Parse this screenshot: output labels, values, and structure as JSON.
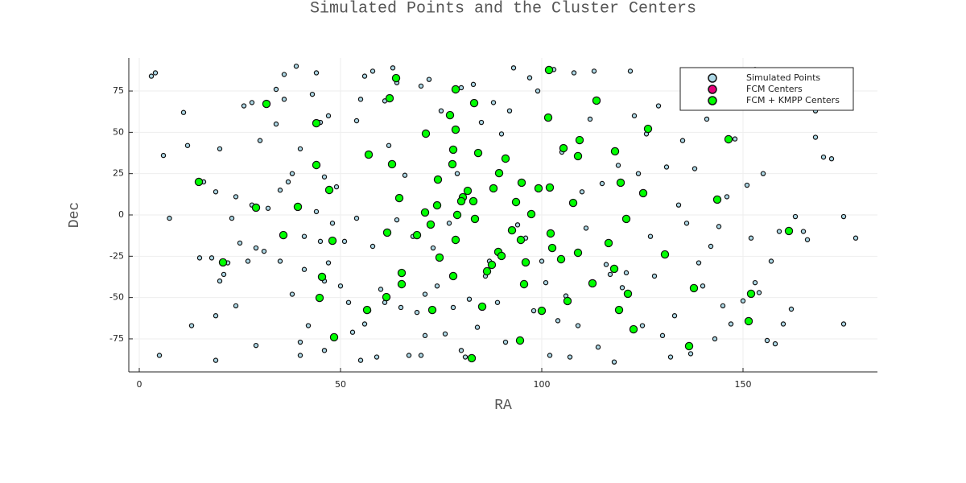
{
  "chart_data": {
    "type": "scatter",
    "title": "Simulated Points and the Cluster Centers",
    "xlabel": "RA",
    "ylabel": "Dec",
    "xlim": [
      -2.6,
      183.4
    ],
    "ylim": [
      -95,
      95
    ],
    "xticks": [
      0,
      50,
      100,
      150
    ],
    "yticks": [
      -75,
      -50,
      -25,
      0,
      25,
      50,
      75
    ],
    "grid": true,
    "legend_position": "top right",
    "series": [
      {
        "name": "Simulated Points",
        "color": "#add8e6",
        "x": [
          3,
          4,
          6,
          7.5,
          5,
          11,
          12,
          13,
          15,
          16,
          18,
          19,
          19,
          19,
          20,
          20,
          21,
          22,
          23,
          24,
          24,
          25,
          26,
          27,
          28,
          28,
          29,
          29,
          30,
          31,
          32,
          34,
          34,
          35,
          35,
          36,
          36,
          37,
          38,
          38,
          39,
          40,
          40,
          40,
          41,
          41,
          42,
          43,
          44,
          44,
          45,
          45,
          46,
          46,
          46,
          47,
          47,
          48,
          49,
          50,
          51,
          52,
          53,
          54,
          54,
          55,
          55,
          56,
          56,
          57,
          58,
          58,
          59,
          60,
          61,
          61,
          62,
          63,
          64,
          64,
          65,
          66,
          67,
          68,
          69,
          70,
          70,
          71,
          71,
          72,
          73,
          74,
          75,
          76,
          77,
          78,
          79,
          80,
          80,
          81,
          82,
          83,
          84,
          85,
          86,
          87,
          88,
          89,
          90,
          91,
          92,
          93,
          94,
          96,
          97,
          98,
          99,
          100,
          101,
          102,
          103,
          104,
          105,
          106,
          107,
          108,
          109,
          110,
          111,
          112,
          113,
          114,
          115,
          116,
          117,
          118,
          119,
          120,
          121,
          122,
          123,
          124,
          125,
          126,
          127,
          128,
          129,
          130,
          131,
          132,
          133,
          134,
          135,
          136,
          137,
          138,
          139,
          140,
          141,
          142,
          143,
          144,
          145,
          146,
          147,
          148,
          150,
          151,
          152,
          153,
          154,
          155,
          156,
          157,
          158,
          159,
          160,
          162,
          163,
          165,
          166,
          168,
          170,
          172,
          175,
          175,
          178,
          153,
          168
        ],
        "y": [
          84,
          86,
          36,
          -2,
          -85,
          62,
          42,
          -67,
          -26,
          20,
          -26,
          14,
          -61,
          -88,
          40,
          -40,
          -36,
          -29,
          -2,
          11,
          -55,
          -17,
          66,
          -28,
          68,
          6,
          -79,
          -20,
          45,
          -22,
          4,
          76,
          55,
          -28,
          15,
          70,
          85,
          20,
          25,
          -48,
          90,
          -77,
          -85,
          40,
          -13,
          -33,
          -67,
          73,
          86,
          2,
          56,
          -16,
          23,
          -40,
          -82,
          -29,
          60,
          -5,
          17,
          -43,
          -16,
          -53,
          -71,
          -2,
          57,
          70,
          -88,
          -66,
          84,
          -58,
          87,
          -19,
          -86,
          -45,
          69,
          -53,
          42,
          89,
          -3,
          80,
          -56,
          24,
          -85,
          -13,
          -59,
          -85,
          78,
          -73,
          -48,
          82,
          -20,
          -43,
          63,
          -72,
          -5,
          -56,
          25,
          77,
          -82,
          -86,
          -51,
          79,
          -68,
          56,
          -37,
          -28,
          68,
          -53,
          49,
          -77,
          63,
          89,
          -6,
          -14,
          83,
          -58,
          75,
          -28,
          -41,
          -85,
          88,
          -64,
          38,
          -49,
          -86,
          86,
          -67,
          14,
          -8,
          58,
          87,
          -80,
          19,
          -30,
          -36,
          -89,
          30,
          -44,
          -35,
          87,
          60,
          25,
          -67,
          49,
          -13,
          -37,
          66,
          -73,
          29,
          -86,
          -61,
          6,
          45,
          -5,
          -84,
          28,
          -29,
          -43,
          58,
          -19,
          -75,
          -7,
          -55,
          11,
          -66,
          46,
          -52,
          18,
          -14,
          -41,
          -47,
          25,
          -76,
          -28,
          -78,
          -10,
          -66,
          -57,
          -1,
          -10,
          -15,
          47,
          35,
          34,
          -66,
          -1,
          -14,
          88,
          63
        ]
      },
      {
        "name": "FCM Centers",
        "color": "#e6007a",
        "x": [],
        "y": []
      },
      {
        "name": "FCM + KMPP Centers",
        "color": "#00ff00",
        "x": [
          31.6,
          44,
          44,
          14.8,
          47.2,
          29,
          39.4,
          20.8,
          35.8,
          48,
          45.4,
          44.8,
          48.4,
          56.6,
          57,
          62.8,
          62.2,
          63.8,
          71.2,
          78.6,
          83.2,
          101.8,
          113.6,
          77.2,
          78.6,
          84.2,
          91,
          78,
          77.8,
          74.2,
          64.6,
          61.6,
          69,
          74.6,
          65.2,
          61.4,
          72.8,
          78,
          78.6,
          79,
          71,
          72.4,
          74,
          80.4,
          81.6,
          80,
          83,
          88,
          89.4,
          95,
          93.6,
          83.4,
          97.4,
          92.6,
          94.8,
          89.2,
          90,
          87.6,
          86.4,
          96,
          95.6,
          85.2,
          65.2,
          82.6,
          94.6,
          100,
          102.2,
          102.6,
          104.8,
          109,
          106.4,
          112.6,
          118,
          116.6,
          119.2,
          122.8,
          121,
          125.2,
          119.6,
          118.2,
          109,
          109.4,
          105.4,
          101.6,
          99.2,
          102,
          107.8,
          126.4,
          130.6,
          121.4,
          137.8,
          136.6,
          143.6,
          146.4,
          152,
          151.4,
          161.4
        ],
        "y": [
          67.2,
          55.5,
          30.2,
          20,
          15.1,
          4.4,
          4.9,
          -28.7,
          -12.2,
          -15.6,
          -37.5,
          -50.2,
          -74,
          -57.5,
          36.5,
          30.7,
          70.6,
          82.8,
          49.2,
          76,
          67.7,
          87.7,
          69.2,
          60.4,
          51.6,
          37.5,
          34.1,
          39.5,
          30.7,
          21.4,
          10.2,
          -10.7,
          -12.2,
          -25.8,
          -35.1,
          -49.7,
          -57.5,
          -37,
          -15.1,
          0,
          1.5,
          -5.8,
          5.8,
          10.7,
          14.6,
          8.3,
          8.3,
          16.1,
          25.3,
          19.5,
          7.8,
          -2.4,
          0.5,
          -9.3,
          -15.1,
          -22.4,
          -24.8,
          -30.2,
          -34.1,
          -28.7,
          -41.9,
          -55.5,
          -41.9,
          -86.7,
          -76,
          -58,
          -11.2,
          -20,
          -26.8,
          -22.9,
          -52.1,
          -41.4,
          -32.6,
          -17,
          -57.5,
          -69.2,
          -2.4,
          13.2,
          19.5,
          38.5,
          35.6,
          45.3,
          40.4,
          58.9,
          16.1,
          16.6,
          7.3,
          52.1,
          -23.9,
          -47.7,
          -44.3,
          -79.4,
          9.3,
          45.8,
          -47.7,
          -64.3,
          -9.7
        ]
      }
    ]
  }
}
